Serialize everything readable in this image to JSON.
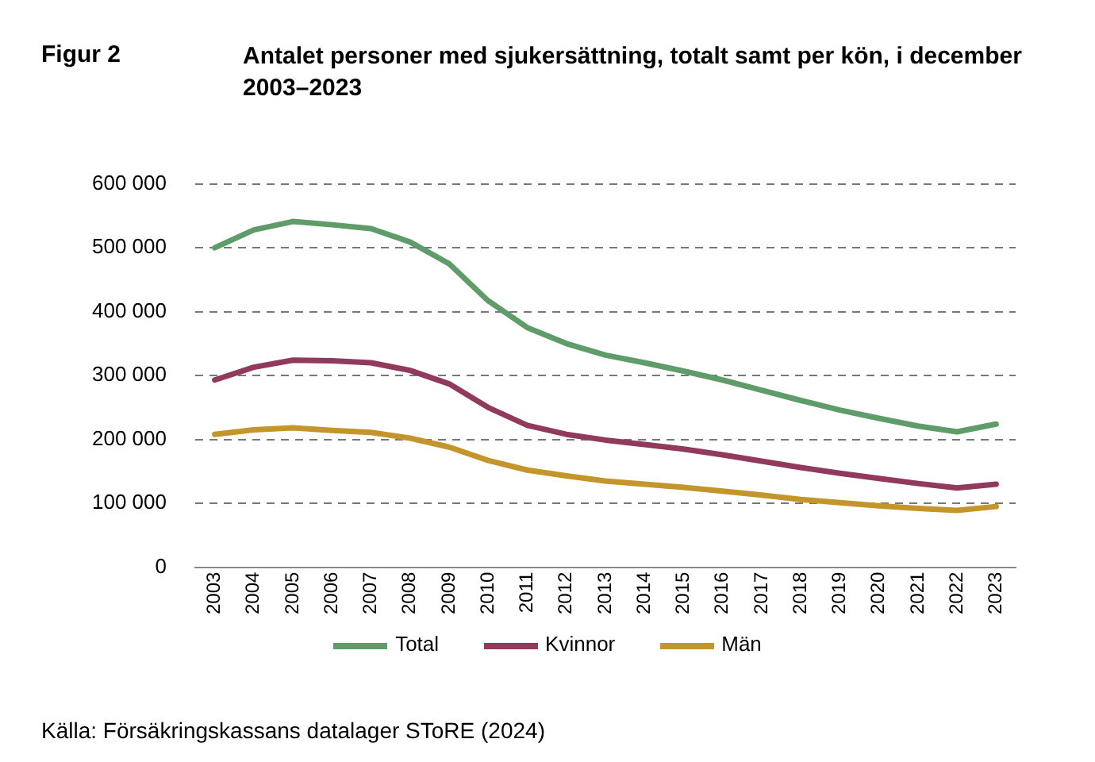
{
  "chart_data": {
    "type": "line",
    "title": "Antalet personer med sjukersättning, totalt samt per kön, i december 2003–2023",
    "annotations": [
      "Figur 2",
      "Källa: Försäkringskassans datalager SToRE (2024)"
    ],
    "categories": [
      "2003",
      "2004",
      "2005",
      "2006",
      "2007",
      "2008",
      "2009",
      "2010",
      "2011",
      "2012",
      "2013",
      "2014",
      "2015",
      "2016",
      "2017",
      "2018",
      "2019",
      "2020",
      "2021",
      "2022",
      "2023"
    ],
    "series": [
      {
        "name": "Total",
        "color": "#5e9c6a",
        "values": [
          500000,
          528000,
          541000,
          536000,
          530000,
          509000,
          475000,
          417000,
          375000,
          350000,
          332000,
          320000,
          307000,
          293000,
          277000,
          261000,
          246000,
          233000,
          221000,
          212000,
          224000
        ]
      },
      {
        "name": "Kvinnor",
        "color": "#913a5d",
        "values": [
          293000,
          313000,
          324000,
          323000,
          320000,
          308000,
          287000,
          250000,
          222000,
          208000,
          199000,
          192000,
          185000,
          176000,
          166000,
          156000,
          147000,
          139000,
          131000,
          124000,
          130000
        ]
      },
      {
        "name": "Män",
        "color": "#c4952a",
        "values": [
          208000,
          215000,
          218000,
          214000,
          211000,
          202000,
          188000,
          167000,
          152000,
          143000,
          135000,
          130000,
          125000,
          119000,
          113000,
          106000,
          101000,
          96000,
          92000,
          89000,
          95000
        ]
      }
    ],
    "ylim": [
      0,
      600000
    ],
    "yticks": [
      {
        "value": 0,
        "label": "0"
      },
      {
        "value": 100000,
        "label": "100 000"
      },
      {
        "value": 200000,
        "label": "200 000"
      },
      {
        "value": 300000,
        "label": "300 000"
      },
      {
        "value": 400000,
        "label": "400 000"
      },
      {
        "value": 500000,
        "label": "500 000"
      },
      {
        "value": 600000,
        "label": "600 000"
      }
    ],
    "grid": "y",
    "legend": "bottom",
    "marker": "none",
    "line_style": "solid"
  }
}
